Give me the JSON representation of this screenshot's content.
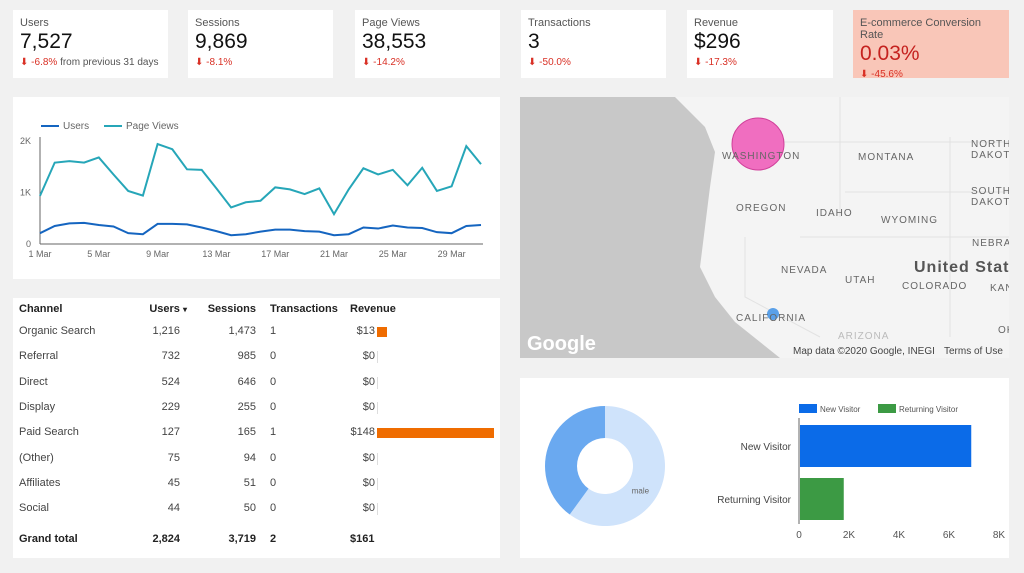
{
  "scorecards": [
    {
      "label": "Users",
      "value": "7,527",
      "delta": "-6.8%",
      "suffix": "from previous 31 days"
    },
    {
      "label": "Sessions",
      "value": "9,869",
      "delta": "-8.1%"
    },
    {
      "label": "Page Views",
      "value": "38,553",
      "delta": "-14.2%"
    },
    {
      "label": "Transactions",
      "value": "3",
      "delta": "-50.0%"
    },
    {
      "label": "Revenue",
      "value": "$296",
      "delta": "-17.3%"
    },
    {
      "label": "E-commerce Conversion Rate",
      "value": "0.03%",
      "delta": "-45.6%",
      "highlight_color": "#f9c6b8"
    }
  ],
  "chart_data": [
    {
      "type": "line",
      "legend_position": "top-left",
      "legend": [
        "Users",
        "Page Views"
      ],
      "x": [
        "1 Mar",
        "2 Mar",
        "3 Mar",
        "4 Mar",
        "5 Mar",
        "6 Mar",
        "7 Mar",
        "8 Mar",
        "9 Mar",
        "10 Mar",
        "11 Mar",
        "12 Mar",
        "13 Mar",
        "14 Mar",
        "15 Mar",
        "16 Mar",
        "17 Mar",
        "18 Mar",
        "19 Mar",
        "20 Mar",
        "21 Mar",
        "22 Mar",
        "23 Mar",
        "24 Mar",
        "25 Mar",
        "26 Mar",
        "27 Mar",
        "28 Mar",
        "29 Mar",
        "30 Mar",
        "31 Mar"
      ],
      "xticks": [
        "1 Mar",
        "5 Mar",
        "9 Mar",
        "13 Mar",
        "17 Mar",
        "21 Mar",
        "25 Mar",
        "29 Mar"
      ],
      "yticks": [
        "0",
        "1K",
        "2K"
      ],
      "ylim": [
        0,
        2000
      ],
      "series": [
        {
          "name": "Users",
          "color": "#1565c0",
          "values": [
            210,
            350,
            400,
            410,
            370,
            340,
            210,
            190,
            390,
            390,
            380,
            320,
            250,
            170,
            190,
            240,
            280,
            280,
            250,
            240,
            170,
            190,
            320,
            300,
            360,
            320,
            310,
            230,
            210,
            350,
            370
          ]
        },
        {
          "name": "Page Views",
          "color": "#26a6b8",
          "values": [
            935,
            1580,
            1610,
            1580,
            1680,
            1350,
            1030,
            940,
            1940,
            1840,
            1450,
            1440,
            1080,
            710,
            810,
            840,
            1100,
            1060,
            970,
            1080,
            580,
            1060,
            1470,
            1350,
            1440,
            1140,
            1480,
            1030,
            1120,
            1900,
            1550
          ]
        }
      ]
    },
    {
      "type": "pie",
      "donut": true,
      "slices": [
        {
          "label": "male",
          "value": 60,
          "color": "#cfe3fb"
        },
        {
          "label": "",
          "value": 40,
          "color": "#6aa9f0"
        }
      ]
    },
    {
      "type": "bar",
      "orientation": "horizontal",
      "legend_position": "top",
      "categories": [
        "New Visitor",
        "Returning Visitor"
      ],
      "series": [
        {
          "name": "New Visitor",
          "color": "#0b6be8",
          "values": [
            6850,
            null
          ]
        },
        {
          "name": "Returning Visitor",
          "color": "#3c9a44",
          "values": [
            null,
            1750
          ]
        }
      ],
      "xticks": [
        "0",
        "2K",
        "4K",
        "6K",
        "8K"
      ],
      "xlim": [
        0,
        8000
      ]
    }
  ],
  "table": {
    "headers": [
      "Channel",
      "Users",
      "Sessions",
      "Transactions",
      "Revenue"
    ],
    "sort_indicator": "▾",
    "rows": [
      [
        "Organic Search",
        "1,216",
        "1,473",
        "1",
        "$13"
      ],
      [
        "Referral",
        "732",
        "985",
        "0",
        "$0"
      ],
      [
        "Direct",
        "524",
        "646",
        "0",
        "$0"
      ],
      [
        "Display",
        "229",
        "255",
        "0",
        "$0"
      ],
      [
        "Paid Search",
        "127",
        "165",
        "1",
        "$148"
      ],
      [
        "(Other)",
        "75",
        "94",
        "0",
        "$0"
      ],
      [
        "Affiliates",
        "45",
        "51",
        "0",
        "$0"
      ],
      [
        "Social",
        "44",
        "50",
        "0",
        "$0"
      ]
    ],
    "revenue_values": [
      13,
      0,
      0,
      0,
      148,
      0,
      0,
      0
    ],
    "total": [
      "Grand total",
      "2,824",
      "3,719",
      "2",
      "$161"
    ],
    "bar_color": "#ef6c00"
  },
  "map": {
    "labels": [
      "WASHINGTON",
      "MONTANA",
      "NORTH DAKOTA",
      "SOUTH DAKOTA",
      "OREGON",
      "IDAHO",
      "WYOMING",
      "NEBRASKA",
      "NEVADA",
      "UTAH",
      "United States",
      "COLORADO",
      "KANSAS",
      "CALIFORNIA",
      "OK",
      "ARIZONA"
    ],
    "logo": "Google",
    "attribution": "Map data ©2020 Google, INEGI",
    "terms": "Terms of Use",
    "bubbles": [
      {
        "region": "Washington",
        "color": "#f06ec0"
      },
      {
        "region": "California",
        "color": "#5aa0e8"
      }
    ]
  }
}
